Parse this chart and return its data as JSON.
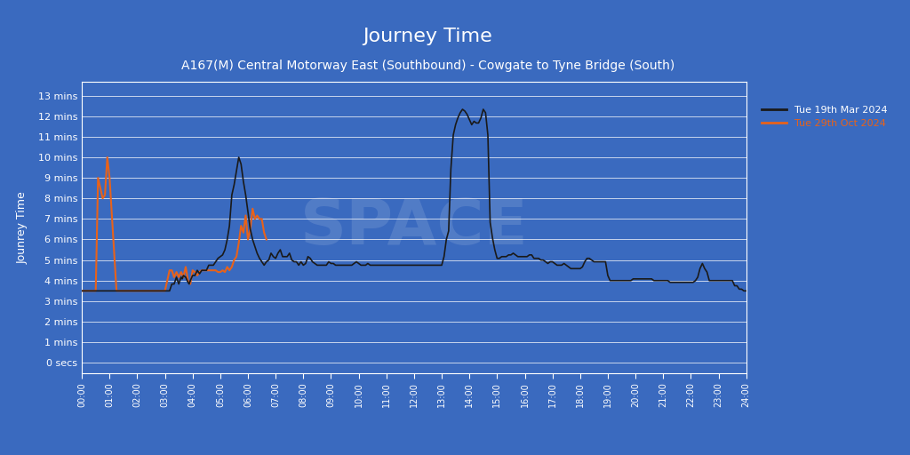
{
  "title": "Journey Time",
  "subtitle": "A167(M) Central Motorway East (Southbound) - Cowgate to Tyne Bridge (South)",
  "ylabel": "Jounrey Time",
  "background_color": "#3a6abf",
  "plot_bg_color": "#3a6abf",
  "grid_color": "#ffffff",
  "text_color": "#ffffff",
  "line1_color": "#1a1a1a",
  "line2_color": "#e8621a",
  "legend1_label": "Tue 19th Mar 2024",
  "legend2_label": "Tue 29th Oct 2024",
  "ytick_labels": [
    "0 secs",
    "1 mins",
    "2 mins",
    "3 mins",
    "4 mins",
    "5 mins",
    "6 mins",
    "7 mins",
    "8 mins",
    "9 mins",
    "10 mins",
    "11 mins",
    "12 mins",
    "13 mins"
  ],
  "ytick_values": [
    0,
    60,
    120,
    180,
    240,
    300,
    360,
    420,
    480,
    540,
    600,
    660,
    720,
    780
  ],
  "xtick_labels": [
    "00:00",
    "01:00",
    "02:00",
    "03:00",
    "04:00",
    "05:00",
    "06:00",
    "07:00",
    "08:00",
    "09:00",
    "10:00",
    "11:00",
    "12:00",
    "13:00",
    "14:00",
    "15:00",
    "16:00",
    "17:00",
    "18:00",
    "19:00",
    "20:00",
    "21:00",
    "22:00",
    "23:00",
    "24:00"
  ],
  "line1_x": [
    0,
    0.083,
    0.25,
    0.33,
    0.375,
    0.5,
    0.583,
    0.625,
    0.667,
    0.7,
    0.75,
    0.833,
    0.875,
    0.917,
    1.0,
    1.083,
    1.125,
    1.167,
    1.25,
    1.33,
    1.375,
    1.417,
    1.5,
    1.583,
    1.625,
    1.667,
    1.75,
    1.833,
    1.875,
    1.917,
    2.0,
    2.083,
    2.125,
    2.167,
    2.25,
    2.33,
    2.375,
    2.417,
    2.5,
    2.583,
    2.625,
    2.667,
    2.75,
    2.833,
    2.875,
    2.917,
    3.0,
    3.083,
    3.125,
    3.167,
    3.25,
    3.33,
    3.375,
    3.417,
    3.5,
    3.583,
    3.625,
    3.667,
    3.75,
    3.833,
    3.875,
    3.917,
    4.0,
    4.083,
    4.167,
    4.25,
    4.33,
    4.417,
    4.5,
    4.583,
    4.667,
    4.75,
    4.833,
    4.917,
    5.0,
    5.083,
    5.167,
    5.25,
    5.33,
    5.417,
    5.5,
    5.583,
    5.667,
    5.75,
    5.833,
    5.917,
    6.0,
    6.083,
    6.167,
    6.25,
    6.33,
    6.417,
    6.5,
    6.583,
    6.667,
    6.75,
    6.833,
    6.917,
    7.0,
    7.083,
    7.167,
    7.25,
    7.33,
    7.417,
    7.5,
    7.583,
    7.667,
    7.75,
    7.833,
    7.917,
    8.0,
    8.083,
    8.167,
    8.25,
    8.33,
    8.417,
    8.5,
    8.583,
    8.667,
    8.75,
    8.833,
    8.917,
    9.0,
    9.083,
    9.167,
    9.25,
    9.33,
    9.417,
    9.5,
    9.583,
    9.667,
    9.75,
    9.833,
    9.917,
    10.0,
    10.083,
    10.167,
    10.25,
    10.33,
    10.417,
    10.5,
    10.583,
    10.667,
    10.75,
    10.833,
    10.917,
    11.0,
    11.083,
    11.167,
    11.25,
    11.33,
    11.417,
    11.5,
    11.583,
    11.667,
    11.75,
    11.833,
    11.917,
    12.0,
    12.083,
    12.167,
    12.25,
    12.33,
    12.417,
    12.5,
    12.583,
    12.667,
    12.75,
    12.833,
    12.917,
    13.0,
    13.083,
    13.167,
    13.25,
    13.33,
    13.417,
    13.5,
    13.583,
    13.667,
    13.75,
    13.833,
    13.917,
    14.0,
    14.083,
    14.167,
    14.25,
    14.33,
    14.417,
    14.5,
    14.583,
    14.667,
    14.75,
    14.833,
    14.917,
    15.0,
    15.083,
    15.167,
    15.25,
    15.33,
    15.417,
    15.5,
    15.583,
    15.667,
    15.75,
    15.833,
    15.917,
    16.0,
    16.083,
    16.167,
    16.25,
    16.33,
    16.417,
    16.5,
    16.583,
    16.667,
    16.75,
    16.833,
    16.917,
    17.0,
    17.083,
    17.167,
    17.25,
    17.33,
    17.417,
    17.5,
    17.583,
    17.667,
    17.75,
    17.833,
    17.917,
    18.0,
    18.083,
    18.167,
    18.25,
    18.33,
    18.417,
    18.5,
    18.583,
    18.667,
    18.75,
    18.833,
    18.917,
    19.0,
    19.083,
    19.167,
    19.25,
    19.33,
    19.417,
    19.5,
    19.583,
    19.667,
    19.75,
    19.833,
    19.917,
    20.0,
    20.083,
    20.167,
    20.25,
    20.33,
    20.417,
    20.5,
    20.583,
    20.667,
    20.75,
    20.833,
    20.917,
    21.0,
    21.083,
    21.167,
    21.25,
    21.33,
    21.417,
    21.5,
    21.583,
    21.667,
    21.75,
    21.833,
    21.917,
    22.0,
    22.083,
    22.167,
    22.25,
    22.33,
    22.417,
    22.5,
    22.583,
    22.667,
    22.75,
    22.833,
    22.917,
    23.0,
    23.083,
    23.167,
    23.25,
    23.33,
    23.417,
    23.5,
    23.583,
    23.667,
    23.75,
    23.833,
    23.917,
    24.0
  ],
  "line1_y": [
    210,
    210,
    210,
    210,
    210,
    210,
    210,
    210,
    210,
    210,
    210,
    210,
    210,
    210,
    210,
    210,
    210,
    210,
    210,
    210,
    210,
    210,
    210,
    210,
    210,
    210,
    210,
    210,
    210,
    210,
    210,
    210,
    210,
    210,
    210,
    210,
    210,
    210,
    210,
    210,
    210,
    210,
    210,
    210,
    210,
    210,
    210,
    210,
    210,
    210,
    230,
    230,
    240,
    250,
    230,
    250,
    245,
    255,
    250,
    235,
    230,
    240,
    255,
    255,
    270,
    260,
    270,
    270,
    270,
    285,
    285,
    285,
    295,
    305,
    310,
    315,
    330,
    360,
    400,
    490,
    520,
    560,
    600,
    580,
    530,
    490,
    440,
    390,
    360,
    340,
    320,
    305,
    295,
    285,
    295,
    300,
    320,
    310,
    305,
    320,
    330,
    310,
    310,
    310,
    320,
    300,
    295,
    295,
    285,
    295,
    285,
    290,
    310,
    305,
    295,
    290,
    285,
    285,
    285,
    285,
    285,
    295,
    290,
    290,
    285,
    285,
    285,
    285,
    285,
    285,
    285,
    285,
    290,
    295,
    290,
    285,
    285,
    285,
    290,
    285,
    285,
    285,
    285,
    285,
    285,
    285,
    285,
    285,
    285,
    285,
    285,
    285,
    285,
    285,
    285,
    285,
    285,
    285,
    285,
    285,
    285,
    285,
    285,
    285,
    285,
    285,
    285,
    285,
    285,
    285,
    285,
    310,
    360,
    385,
    565,
    665,
    695,
    715,
    730,
    740,
    735,
    725,
    710,
    695,
    705,
    700,
    700,
    715,
    740,
    730,
    665,
    410,
    365,
    330,
    305,
    305,
    310,
    310,
    310,
    315,
    315,
    320,
    315,
    310,
    310,
    310,
    310,
    310,
    315,
    315,
    305,
    305,
    305,
    300,
    300,
    295,
    290,
    295,
    295,
    290,
    285,
    285,
    285,
    290,
    285,
    280,
    275,
    275,
    275,
    275,
    275,
    280,
    295,
    305,
    305,
    300,
    295,
    295,
    295,
    295,
    295,
    295,
    255,
    240,
    240,
    240,
    240,
    240,
    240,
    240,
    240,
    240,
    240,
    245,
    245,
    245,
    245,
    245,
    245,
    245,
    245,
    245,
    240,
    240,
    240,
    240,
    240,
    240,
    240,
    235,
    235,
    235,
    235,
    235,
    235,
    235,
    235,
    235,
    235,
    235,
    240,
    250,
    275,
    290,
    275,
    265,
    240,
    240,
    240,
    240,
    240,
    240,
    240,
    240,
    240,
    240,
    240,
    225,
    225,
    215,
    215,
    210,
    210
  ],
  "line2_x": [
    0,
    0.083,
    0.167,
    0.25,
    0.33,
    0.417,
    0.5,
    0.583,
    0.667,
    0.75,
    0.833,
    0.917,
    1.0,
    1.25,
    1.5,
    1.75,
    2.0,
    2.25,
    2.5,
    2.75,
    3.0,
    3.083,
    3.167,
    3.25,
    3.33,
    3.417,
    3.5,
    3.583,
    3.667,
    3.75,
    3.833,
    3.917,
    4.0,
    4.083,
    4.167,
    4.25,
    4.33,
    4.417,
    4.5,
    4.583,
    4.667,
    4.75,
    4.833,
    4.917,
    5.0,
    5.083,
    5.167,
    5.25,
    5.33,
    5.417,
    5.5,
    5.583,
    5.667,
    5.75,
    5.833,
    5.917,
    6.0,
    6.083,
    6.167,
    6.25,
    6.33,
    6.417,
    6.5,
    6.583,
    6.667
  ],
  "line2_y": [
    210,
    210,
    210,
    210,
    210,
    210,
    210,
    540,
    510,
    480,
    490,
    600,
    540,
    210,
    210,
    210,
    210,
    210,
    210,
    210,
    210,
    240,
    270,
    270,
    250,
    265,
    250,
    265,
    250,
    280,
    240,
    230,
    270,
    265,
    255,
    265,
    270,
    270,
    270,
    270,
    270,
    270,
    270,
    265,
    265,
    270,
    265,
    280,
    270,
    280,
    300,
    310,
    350,
    400,
    380,
    430,
    360,
    390,
    450,
    420,
    430,
    420,
    420,
    380,
    360
  ]
}
